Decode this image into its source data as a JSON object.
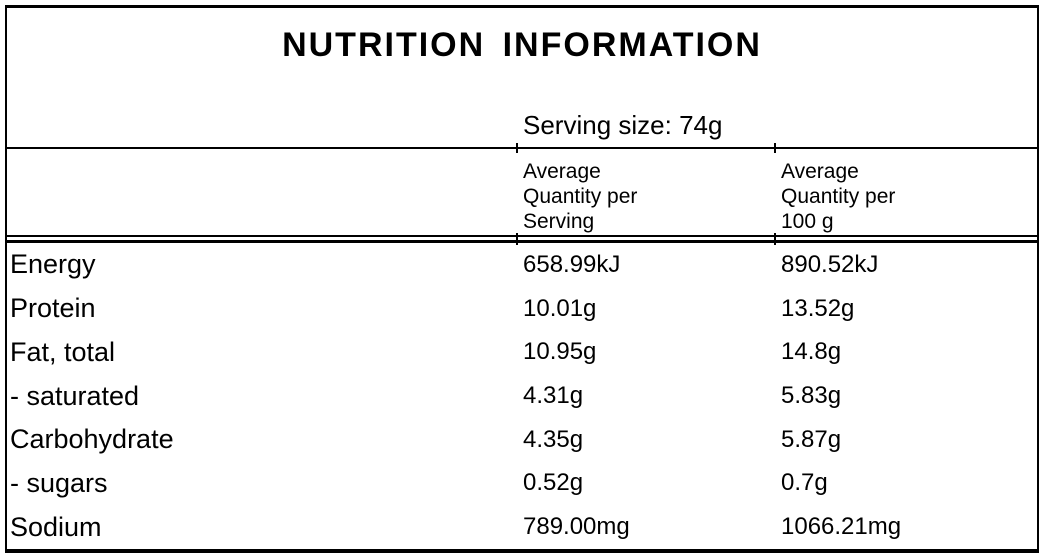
{
  "title": "NUTRITION INFORMATION",
  "serving_size_text": "Serving size: 74g",
  "columns": {
    "per_serving_header": "Average\nQuantity per\nServing",
    "per_100g_header": "Average\nQuantity per\n100 g"
  },
  "rows": [
    {
      "nutrient": "Energy",
      "per_serving": "658.99kJ",
      "per_100g": "890.52kJ"
    },
    {
      "nutrient": "Protein",
      "per_serving": "10.01g",
      "per_100g": "13.52g"
    },
    {
      "nutrient": "Fat, total",
      "per_serving": "10.95g",
      "per_100g": "14.8g"
    },
    {
      "nutrient": "- saturated",
      "per_serving": "4.31g",
      "per_100g": "5.83g"
    },
    {
      "nutrient": "Carbohydrate",
      "per_serving": "4.35g",
      "per_100g": "5.87g"
    },
    {
      "nutrient": "- sugars",
      "per_serving": "0.52g",
      "per_100g": "0.7g"
    },
    {
      "nutrient": "Sodium",
      "per_serving": "789.00mg",
      "per_100g": "1066.21mg"
    }
  ],
  "colors": {
    "border": "#000000",
    "text": "#000000",
    "background": "#ffffff"
  }
}
